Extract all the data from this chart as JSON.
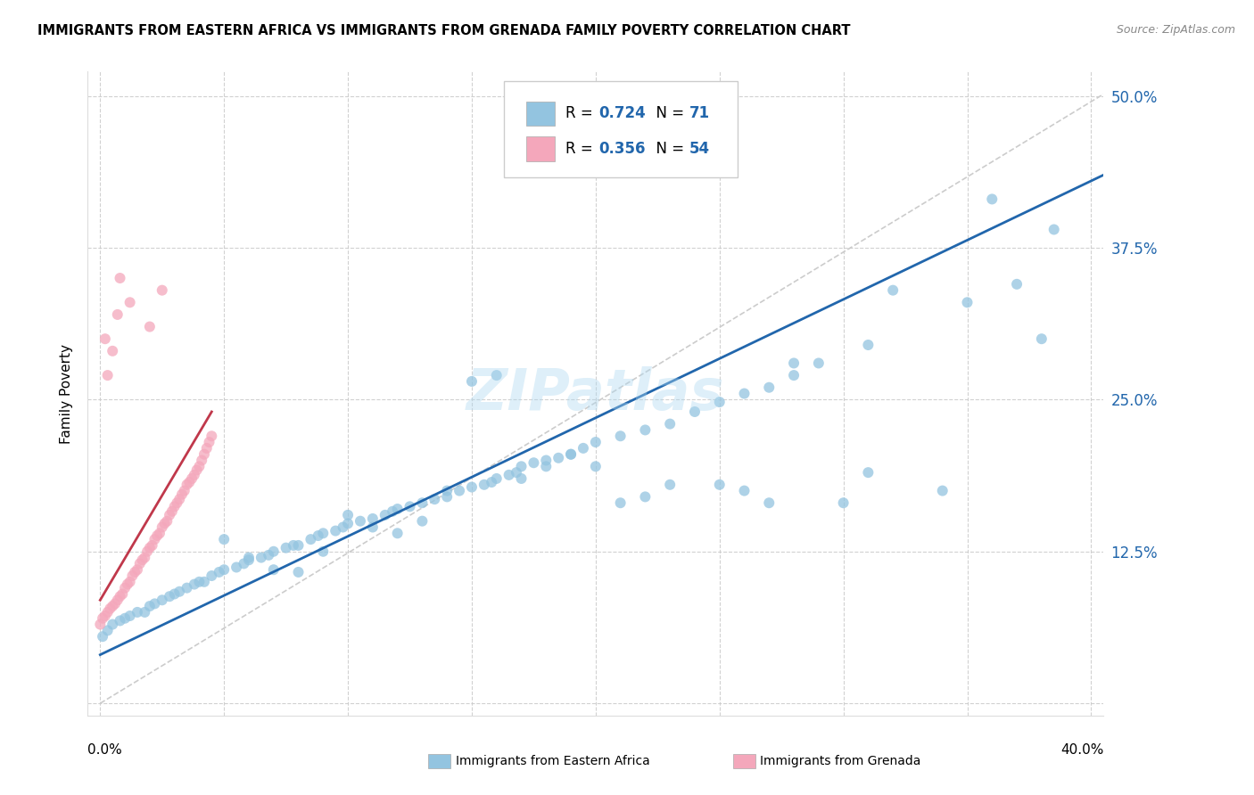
{
  "title": "IMMIGRANTS FROM EASTERN AFRICA VS IMMIGRANTS FROM GRENADA FAMILY POVERTY CORRELATION CHART",
  "source": "Source: ZipAtlas.com",
  "ylabel": "Family Poverty",
  "ytick_values": [
    0.0,
    0.125,
    0.25,
    0.375,
    0.5
  ],
  "ytick_labels": [
    "",
    "12.5%",
    "25.0%",
    "37.5%",
    "50.0%"
  ],
  "xlim": [
    -0.005,
    0.405
  ],
  "ylim": [
    -0.01,
    0.52
  ],
  "color_blue": "#93c4e0",
  "color_pink": "#f4a7bb",
  "color_blue_line": "#2166ac",
  "color_pink_line": "#c0384b",
  "color_diag": "#cccccc",
  "watermark": "ZIPatlas",
  "blue_x": [
    0.001,
    0.003,
    0.005,
    0.008,
    0.01,
    0.012,
    0.015,
    0.018,
    0.02,
    0.022,
    0.025,
    0.028,
    0.03,
    0.032,
    0.035,
    0.038,
    0.04,
    0.042,
    0.045,
    0.048,
    0.05,
    0.055,
    0.058,
    0.06,
    0.065,
    0.068,
    0.07,
    0.075,
    0.078,
    0.08,
    0.085,
    0.088,
    0.09,
    0.095,
    0.098,
    0.1,
    0.105,
    0.11,
    0.115,
    0.118,
    0.12,
    0.125,
    0.13,
    0.135,
    0.14,
    0.145,
    0.15,
    0.155,
    0.158,
    0.16,
    0.165,
    0.168,
    0.17,
    0.175,
    0.18,
    0.185,
    0.19,
    0.195,
    0.2,
    0.21,
    0.22,
    0.23,
    0.24,
    0.25,
    0.26,
    0.27,
    0.28,
    0.29,
    0.31,
    0.35,
    0.37
  ],
  "blue_y": [
    0.055,
    0.06,
    0.065,
    0.068,
    0.07,
    0.072,
    0.075,
    0.075,
    0.08,
    0.082,
    0.085,
    0.088,
    0.09,
    0.092,
    0.095,
    0.098,
    0.1,
    0.1,
    0.105,
    0.108,
    0.11,
    0.112,
    0.115,
    0.118,
    0.12,
    0.122,
    0.125,
    0.128,
    0.13,
    0.13,
    0.135,
    0.138,
    0.14,
    0.142,
    0.145,
    0.148,
    0.15,
    0.152,
    0.155,
    0.158,
    0.16,
    0.162,
    0.165,
    0.168,
    0.17,
    0.175,
    0.178,
    0.18,
    0.182,
    0.185,
    0.188,
    0.19,
    0.195,
    0.198,
    0.2,
    0.202,
    0.205,
    0.21,
    0.215,
    0.22,
    0.225,
    0.23,
    0.24,
    0.248,
    0.255,
    0.26,
    0.27,
    0.28,
    0.295,
    0.33,
    0.345
  ],
  "blue_extra_x": [
    0.15,
    0.16,
    0.28,
    0.32,
    0.36,
    0.22,
    0.23,
    0.19,
    0.2,
    0.21,
    0.25,
    0.26,
    0.27,
    0.3,
    0.31,
    0.34,
    0.05,
    0.06,
    0.07,
    0.08,
    0.09,
    0.1,
    0.11,
    0.12,
    0.13,
    0.14,
    0.17,
    0.18,
    0.38,
    0.385
  ],
  "blue_extra_y": [
    0.265,
    0.27,
    0.28,
    0.34,
    0.415,
    0.17,
    0.18,
    0.205,
    0.195,
    0.165,
    0.18,
    0.175,
    0.165,
    0.165,
    0.19,
    0.175,
    0.135,
    0.12,
    0.11,
    0.108,
    0.125,
    0.155,
    0.145,
    0.14,
    0.15,
    0.175,
    0.185,
    0.195,
    0.3,
    0.39
  ],
  "pink_x": [
    0.0,
    0.001,
    0.002,
    0.003,
    0.004,
    0.005,
    0.006,
    0.007,
    0.008,
    0.009,
    0.01,
    0.011,
    0.012,
    0.013,
    0.014,
    0.015,
    0.016,
    0.017,
    0.018,
    0.019,
    0.02,
    0.021,
    0.022,
    0.023,
    0.024,
    0.025,
    0.026,
    0.027,
    0.028,
    0.029,
    0.03,
    0.031,
    0.032,
    0.033,
    0.034,
    0.035,
    0.036,
    0.037,
    0.038,
    0.039,
    0.04,
    0.041,
    0.042,
    0.043,
    0.044,
    0.045,
    0.003,
    0.005,
    0.007,
    0.002,
    0.008,
    0.012,
    0.02,
    0.025
  ],
  "pink_y": [
    0.065,
    0.07,
    0.072,
    0.075,
    0.078,
    0.08,
    0.082,
    0.085,
    0.088,
    0.09,
    0.095,
    0.098,
    0.1,
    0.105,
    0.108,
    0.11,
    0.115,
    0.118,
    0.12,
    0.125,
    0.128,
    0.13,
    0.135,
    0.138,
    0.14,
    0.145,
    0.148,
    0.15,
    0.155,
    0.158,
    0.162,
    0.165,
    0.168,
    0.172,
    0.175,
    0.18,
    0.182,
    0.185,
    0.188,
    0.192,
    0.195,
    0.2,
    0.205,
    0.21,
    0.215,
    0.22,
    0.27,
    0.29,
    0.32,
    0.3,
    0.35,
    0.33,
    0.31,
    0.34
  ]
}
